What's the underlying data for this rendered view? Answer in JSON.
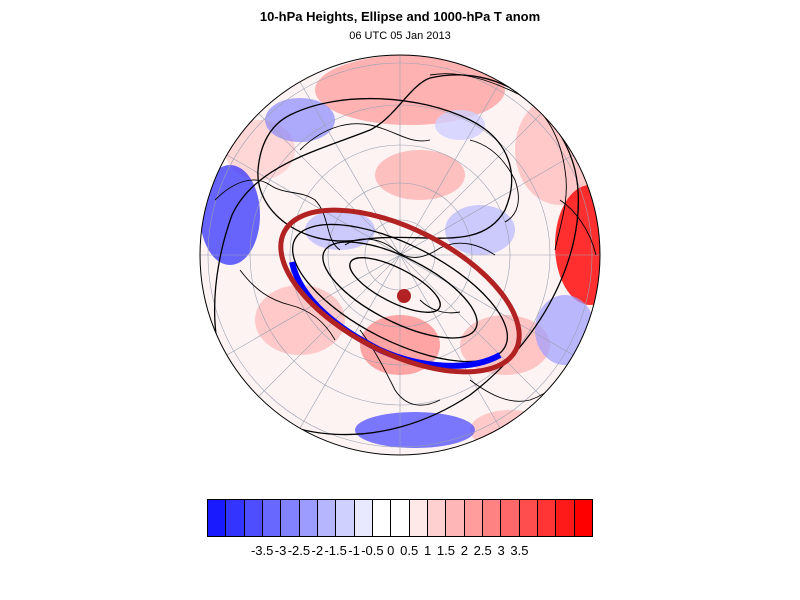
{
  "title": "10-hPa Heights, Ellipse and 1000-hPa T anom",
  "subtitle": "06 UTC 05 Jan 2013",
  "colors": {
    "positive": "#ff0000",
    "negative": "#0000ff",
    "ellipse": "#b22222",
    "contour": "#000000",
    "coast": "#000000",
    "graticule": "#9aa0b0"
  },
  "colorbar": {
    "colors": [
      "#1a1aff",
      "#3434ff",
      "#4e4eff",
      "#6868ff",
      "#8282ff",
      "#9c9cff",
      "#b6b6ff",
      "#d0d0ff",
      "#e8e8ff",
      "#ffffff",
      "#ffffff",
      "#ffe8e8",
      "#ffd0d0",
      "#ffb6b6",
      "#ff9c9c",
      "#ff8282",
      "#ff6868",
      "#ff4e4e",
      "#ff3434",
      "#ff1a1a",
      "#ff0000"
    ],
    "ticks": [
      "-3.5",
      "-3",
      "-2.5",
      "-2",
      "-1.5",
      "-1",
      "-0.5",
      "0",
      "0.5",
      "1",
      "1.5",
      "2",
      "2.5",
      "3",
      "3.5"
    ]
  },
  "map": {
    "projection": "polar stereographic",
    "field": "1000-hPa T anom",
    "contours": "10-hPa Heights",
    "overlay": "Ellipse"
  }
}
